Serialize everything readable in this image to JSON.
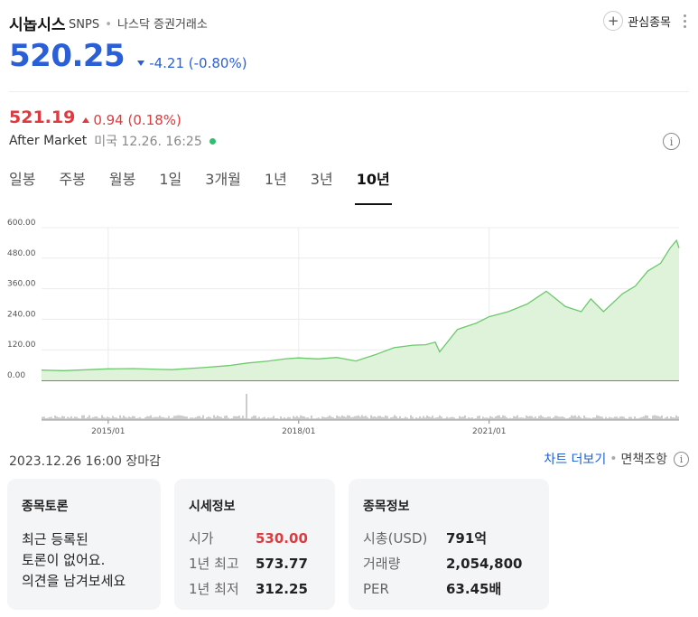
{
  "stock": {
    "name": "시놉시스",
    "ticker": "SNPS",
    "exchange": "나스닥 증권거래소",
    "price": "520.25",
    "change": "-4.21 (-0.80%)",
    "watch_label": "관심종목"
  },
  "after_market": {
    "price": "521.19",
    "change": "0.94 (0.18%)",
    "label": "After Market",
    "time": "미국 12.26. 16:25"
  },
  "tabs": [
    "일봉",
    "주봉",
    "월봉",
    "1일",
    "3개월",
    "1년",
    "3년",
    "10년"
  ],
  "active_tab": "10년",
  "chart_data": {
    "type": "area",
    "y_ticks": [
      "600.00",
      "480.00",
      "360.00",
      "240.00",
      "120.00",
      "0.00"
    ],
    "ylim": [
      0,
      600
    ],
    "x_ticks": [
      "2015/01",
      "2018/01",
      "2021/01"
    ],
    "x_range": [
      "2013/12",
      "2023/12"
    ],
    "grid": true,
    "colors": {
      "line": "#6cc96c",
      "fill": "#dff3da",
      "volume": "#9a9a9a"
    },
    "series": [
      {
        "x": [
          2013.95,
          2014.3,
          2014.7,
          2015.0,
          2015.4,
          2015.8,
          2016.0,
          2016.5,
          2016.9,
          2017.2,
          2017.5,
          2017.8,
          2018.0,
          2018.3,
          2018.6,
          2018.9,
          2019.2,
          2019.5,
          2019.8,
          2020.0,
          2020.15,
          2020.22,
          2020.5,
          2020.8,
          2021.0,
          2021.3,
          2021.6,
          2021.9,
          2022.0,
          2022.2,
          2022.45,
          2022.6,
          2022.8,
          2022.95,
          2023.1,
          2023.3,
          2023.5,
          2023.7,
          2023.85,
          2023.95,
          2023.99
        ],
        "y": [
          40,
          38,
          42,
          45,
          46,
          43,
          42,
          50,
          58,
          68,
          75,
          85,
          88,
          84,
          90,
          76,
          100,
          128,
          138,
          140,
          150,
          112,
          200,
          225,
          250,
          270,
          300,
          350,
          330,
          290,
          270,
          320,
          270,
          305,
          340,
          370,
          430,
          460,
          520,
          550,
          520
        ]
      }
    ]
  },
  "footer": {
    "close_date": "2023.12.26 16:00 장마감",
    "more_chart": "차트 더보기",
    "disclaimer": "면책조항"
  },
  "discussion": {
    "title": "종목토론",
    "text": "최근 등록된\n토론이 없어요.\n의견을 남겨보세요"
  },
  "market_info": {
    "title": "시세정보",
    "rows": [
      {
        "label": "시가",
        "value": "530.00"
      },
      {
        "label": "1년 최고",
        "value": "573.77"
      },
      {
        "label": "1년 최저",
        "value": "312.25"
      }
    ]
  },
  "stock_info": {
    "title": "종목정보",
    "rows": [
      {
        "label": "시총(USD)",
        "value": "791억"
      },
      {
        "label": "거래량",
        "value": "2,054,800"
      },
      {
        "label": "PER",
        "value": "63.45배"
      }
    ]
  }
}
